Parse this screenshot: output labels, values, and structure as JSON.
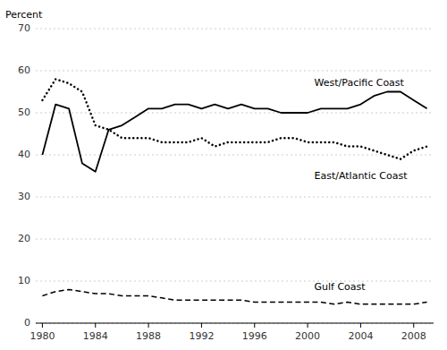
{
  "chart_data": {
    "type": "line",
    "y_label": "Percent",
    "x": [
      1980,
      1981,
      1982,
      1983,
      1984,
      1985,
      1986,
      1987,
      1988,
      1989,
      1990,
      1991,
      1992,
      1993,
      1994,
      1995,
      1996,
      1997,
      1998,
      1999,
      2000,
      2001,
      2002,
      2003,
      2004,
      2005,
      2006,
      2007,
      2008,
      2009
    ],
    "series": [
      {
        "color": "#000000",
        "line_style": "solid",
        "values": [
          40,
          52,
          51,
          38,
          36,
          46,
          47,
          49,
          51,
          51,
          52,
          52,
          51,
          52,
          51,
          52,
          51,
          51,
          50,
          50,
          50,
          51,
          51,
          51,
          52,
          54,
          55,
          55,
          53,
          51
        ]
      },
      {
        "color": "#000000",
        "line_style": "dotted",
        "values": [
          53,
          58,
          57,
          55,
          47,
          46,
          44,
          44,
          44,
          43,
          43,
          43,
          44,
          42,
          43,
          43,
          43,
          43,
          44,
          44,
          43,
          43,
          43,
          42,
          42,
          41,
          40,
          39,
          41,
          42
        ]
      },
      {
        "color": "#000000",
        "line_style": "dashed",
        "values": [
          6.5,
          7.5,
          8.0,
          7.5,
          7.0,
          7.0,
          6.5,
          6.5,
          6.5,
          6.0,
          5.5,
          5.5,
          5.5,
          5.5,
          5.5,
          5.5,
          5.0,
          5.0,
          5.0,
          5.0,
          5.0,
          5.0,
          4.5,
          5.0,
          4.5,
          4.5,
          4.5,
          4.5,
          4.5,
          5.0
        ]
      }
    ],
    "annotations": [
      {
        "text": "West/Pacific Coast",
        "x": 2000.5,
        "y": 57
      },
      {
        "text": "East/Atlantic Coast",
        "x": 2000.5,
        "y": 35
      },
      {
        "text": "Gulf Coast",
        "x": 2000.5,
        "y": 8.5
      }
    ],
    "xlim": [
      1979.5,
      2009.5
    ],
    "xticks": [
      1980,
      1984,
      1988,
      1992,
      1996,
      2000,
      2004,
      2008
    ],
    "ylim": [
      0,
      70
    ],
    "yticks": [
      0,
      10,
      20,
      30,
      40,
      50,
      60,
      70
    ],
    "grid": true
  }
}
